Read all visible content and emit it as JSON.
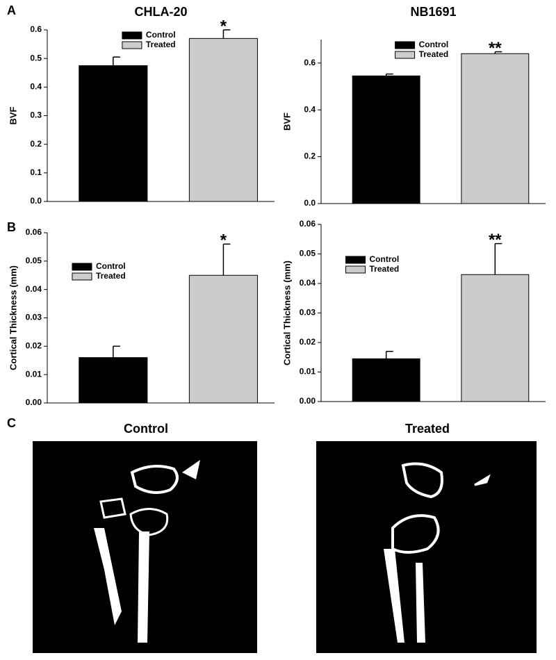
{
  "panel_labels": [
    "A",
    "B",
    "C"
  ],
  "images": [
    {
      "title": "Control"
    },
    {
      "title": "Treated"
    }
  ],
  "chart_data": [
    {
      "type": "bar",
      "title": "CHLA-20",
      "y_label": "BVF",
      "legend": "top-center",
      "series": [
        {
          "name": "Control",
          "color": "#000000",
          "values": [
            0.475
          ],
          "errors": [
            0.03
          ]
        },
        {
          "name": "Treated",
          "color": "#cccccc",
          "values": [
            0.57
          ],
          "errors": [
            0.03
          ],
          "significance": "*"
        }
      ],
      "ylim": [
        0,
        0.6
      ],
      "yticks": [
        {
          "value": 0,
          "label": "0.0"
        },
        0.1,
        0.2,
        0.3,
        0.4,
        0.5,
        0.6
      ]
    },
    {
      "type": "bar",
      "title": "NB1691",
      "y_label": "BVF",
      "legend": "top-center",
      "series": [
        {
          "name": "Control",
          "color": "#000000",
          "values": [
            0.545
          ],
          "errors": [
            0.008
          ]
        },
        {
          "name": "Treated",
          "color": "#cccccc",
          "values": [
            0.64
          ],
          "errors": [
            0.008
          ],
          "significance": "**"
        }
      ],
      "ylim": [
        0,
        0.7
      ],
      "yticks": [
        {
          "value": 0,
          "label": "0.0"
        },
        0.2,
        0.4,
        0.6
      ]
    },
    {
      "type": "bar",
      "y_label": "Cortical Thickness (mm)",
      "legend": "left",
      "series": [
        {
          "name": "Control",
          "color": "#000000",
          "values": [
            0.016
          ],
          "errors": [
            0.004
          ]
        },
        {
          "name": "Treated",
          "color": "#cccccc",
          "values": [
            0.045
          ],
          "errors": [
            0.011
          ],
          "significance": "*"
        }
      ],
      "ylim": [
        0,
        0.06
      ],
      "yticks": [
        {
          "value": 0,
          "label": "0.00"
        },
        0.01,
        0.02,
        0.03,
        0.04,
        0.05,
        0.06
      ]
    },
    {
      "type": "bar",
      "y_label": "Cortical Thickness (mm)",
      "legend": "left",
      "series": [
        {
          "name": "Control",
          "color": "#000000",
          "values": [
            0.0145
          ],
          "errors": [
            0.0025
          ]
        },
        {
          "name": "Treated",
          "color": "#cccccc",
          "values": [
            0.043
          ],
          "errors": [
            0.0105
          ],
          "significance": "**"
        }
      ],
      "ylim": [
        0,
        0.06
      ],
      "yticks": [
        {
          "value": 0,
          "label": "0.00"
        },
        0.01,
        0.02,
        0.03,
        0.04,
        0.05,
        0.06
      ]
    }
  ]
}
